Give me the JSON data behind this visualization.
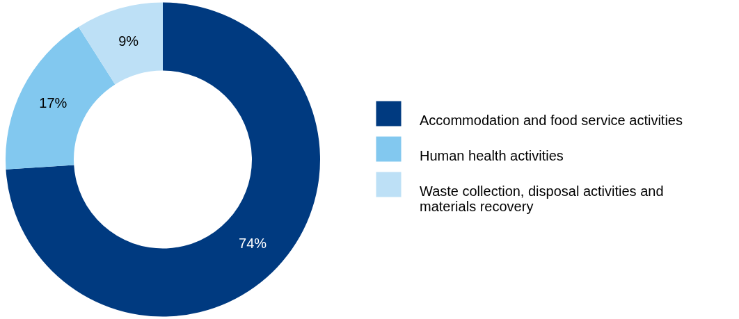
{
  "chart_data": {
    "type": "donut",
    "categories": [
      "Accommodation and food service activities",
      "Human health activities",
      "Waste collection, disposal activities and materials recovery"
    ],
    "values": [
      74,
      17,
      9
    ],
    "colors": [
      "#003a80",
      "#82c8ef",
      "#bde0f6"
    ],
    "value_labels": [
      "74%",
      "17%",
      "9%"
    ],
    "legend": "right"
  }
}
